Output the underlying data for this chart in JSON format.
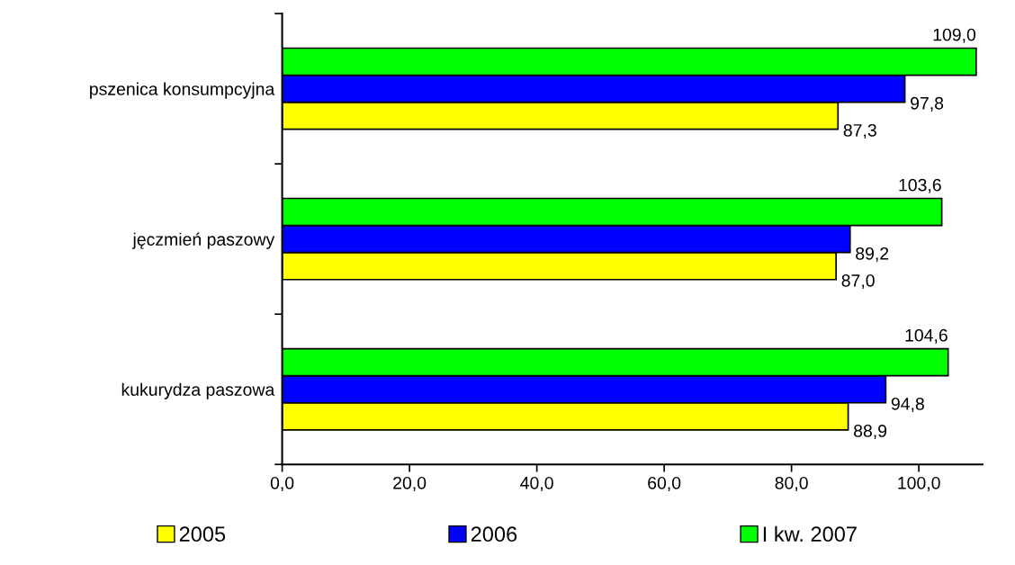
{
  "chart_data": {
    "type": "bar",
    "orientation": "horizontal",
    "categories": [
      "pszenica konsumpcyjna",
      "jęczmień paszowy",
      "kukurydza paszowa"
    ],
    "series": [
      {
        "name": "2005",
        "color": "#ffff00",
        "values": [
          87.3,
          87.0,
          88.9
        ],
        "value_labels": [
          "87,3",
          "87,0",
          "88,9"
        ]
      },
      {
        "name": "2006",
        "color": "#0000ff",
        "values": [
          97.8,
          89.2,
          94.8
        ],
        "value_labels": [
          "97,8",
          "89,2",
          "94,8"
        ]
      },
      {
        "name": "I kw. 2007",
        "color": "#00ff00",
        "values": [
          109.0,
          103.6,
          104.6
        ],
        "value_labels": [
          "109,0",
          "103,6",
          "104,6"
        ]
      }
    ],
    "xlim": [
      0,
      110
    ],
    "xticks": [
      {
        "value": 0,
        "label": "0,0"
      },
      {
        "value": 20,
        "label": "20,0"
      },
      {
        "value": 40,
        "label": "40,0"
      },
      {
        "value": 60,
        "label": "60,0"
      },
      {
        "value": 80,
        "label": "80,0"
      },
      {
        "value": 100,
        "label": "100,0"
      }
    ],
    "grid": false,
    "legend": "bottom"
  }
}
